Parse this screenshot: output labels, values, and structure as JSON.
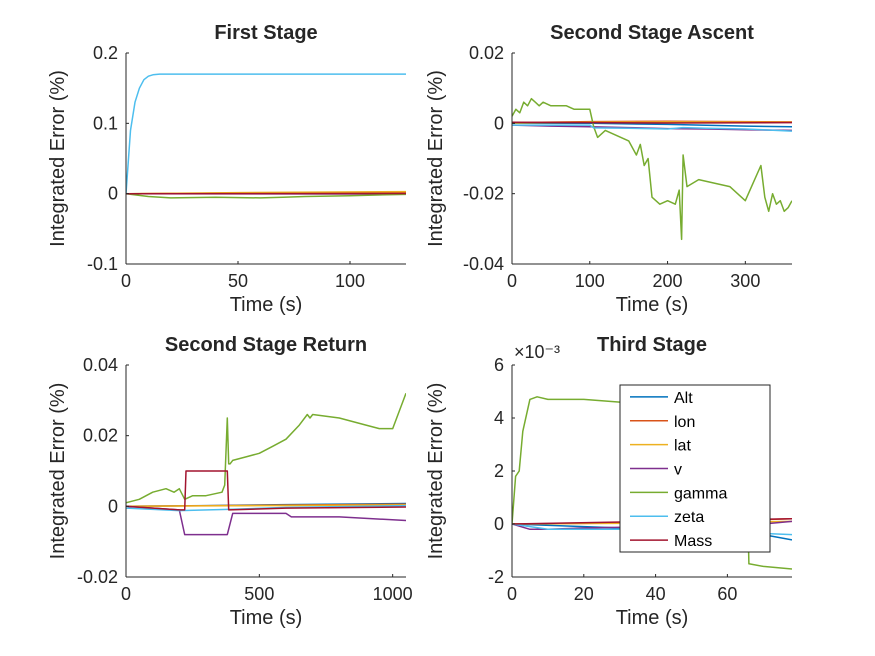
{
  "colors": {
    "Alt": "#0072BD",
    "lon": "#D95319",
    "lat": "#EDB120",
    "v": "#7E2F8E",
    "gamma": "#77AC30",
    "zeta": "#4DBEEE",
    "Mass": "#A2142F"
  },
  "legend": {
    "entries": [
      "Alt",
      "lon",
      "lat",
      "v",
      "gamma",
      "zeta",
      "Mass"
    ],
    "placement": "inside-top-right of Third Stage"
  },
  "chart_data": [
    {
      "type": "line",
      "title": "First Stage",
      "xlabel": "Time (s)",
      "ylabel": "Integrated Error (%)",
      "xlim": [
        0,
        125
      ],
      "ylim": [
        -0.1,
        0.2
      ],
      "xticks": [
        0,
        50,
        100
      ],
      "xtick_labels": [
        "0",
        "50",
        "100"
      ],
      "yticks": [
        -0.1,
        0,
        0.1,
        0.2
      ],
      "ytick_labels": [
        "-0.1",
        "0",
        "0.1",
        "0.2"
      ],
      "exponent_label": "",
      "series": [
        {
          "name": "Alt",
          "x": [
            0,
            125
          ],
          "y": [
            0,
            0.0005
          ]
        },
        {
          "name": "lon",
          "x": [
            0,
            50,
            125
          ],
          "y": [
            0,
            0.001,
            0.002
          ]
        },
        {
          "name": "lat",
          "x": [
            0,
            50,
            125
          ],
          "y": [
            0,
            0.0015,
            0.003
          ]
        },
        {
          "name": "v",
          "x": [
            0,
            125
          ],
          "y": [
            0,
            -0.0005
          ]
        },
        {
          "name": "gamma",
          "x": [
            0,
            5,
            10,
            20,
            40,
            60,
            70,
            80,
            100,
            110,
            125
          ],
          "y": [
            0,
            -0.002,
            -0.004,
            -0.006,
            -0.005,
            -0.006,
            -0.005,
            -0.004,
            -0.003,
            -0.002,
            -0.001
          ]
        },
        {
          "name": "zeta",
          "x": [
            0,
            2,
            4,
            6,
            8,
            10,
            12,
            15,
            20,
            30,
            50,
            125
          ],
          "y": [
            0,
            0.09,
            0.13,
            0.15,
            0.162,
            0.167,
            0.169,
            0.17,
            0.17,
            0.17,
            0.17,
            0.17
          ]
        },
        {
          "name": "Mass",
          "x": [
            0,
            125
          ],
          "y": [
            0,
            0.0002
          ]
        }
      ]
    },
    {
      "type": "line",
      "title": "Second Stage Ascent",
      "xlabel": "Time (s)",
      "ylabel": "Integrated Error (%)",
      "xlim": [
        0,
        360
      ],
      "ylim": [
        -0.04,
        0.02
      ],
      "xticks": [
        0,
        100,
        200,
        300
      ],
      "xtick_labels": [
        "0",
        "100",
        "200",
        "300"
      ],
      "yticks": [
        -0.04,
        -0.02,
        0,
        0.02
      ],
      "ytick_labels": [
        "-0.04",
        "-0.02",
        "0",
        "0.02"
      ],
      "exponent_label": "",
      "series": [
        {
          "name": "Alt",
          "x": [
            0,
            100,
            200,
            300,
            360
          ],
          "y": [
            0,
            0,
            -0.0003,
            -0.0008,
            -0.001
          ]
        },
        {
          "name": "lon",
          "x": [
            0,
            100,
            200,
            360
          ],
          "y": [
            0.0002,
            0.0005,
            0.0006,
            0.0004
          ]
        },
        {
          "name": "lat",
          "x": [
            0,
            100,
            200,
            360
          ],
          "y": [
            0.0001,
            0.0003,
            0.0004,
            0.0003
          ]
        },
        {
          "name": "v",
          "x": [
            0,
            50,
            100,
            150,
            200,
            250,
            300,
            360
          ],
          "y": [
            -0.0005,
            -0.0008,
            -0.001,
            -0.0012,
            -0.0015,
            -0.0016,
            -0.0018,
            -0.002
          ]
        },
        {
          "name": "gamma",
          "x": [
            0,
            5,
            10,
            15,
            20,
            25,
            30,
            35,
            40,
            50,
            60,
            70,
            80,
            90,
            100,
            105,
            110,
            120,
            130,
            140,
            150,
            160,
            165,
            170,
            175,
            180,
            190,
            200,
            210,
            215,
            218,
            220,
            225,
            240,
            260,
            280,
            290,
            300,
            310,
            320,
            325,
            330,
            335,
            340,
            345,
            350,
            355,
            360
          ],
          "y": [
            0.002,
            0.004,
            0.003,
            0.006,
            0.005,
            0.007,
            0.006,
            0.005,
            0.006,
            0.005,
            0.005,
            0.005,
            0.004,
            0.004,
            0.004,
            -0.001,
            -0.004,
            -0.002,
            -0.003,
            -0.004,
            -0.005,
            -0.009,
            -0.006,
            -0.012,
            -0.01,
            -0.021,
            -0.023,
            -0.022,
            -0.023,
            -0.019,
            -0.033,
            -0.009,
            -0.018,
            -0.016,
            -0.017,
            -0.018,
            -0.02,
            -0.022,
            -0.017,
            -0.012,
            -0.021,
            -0.025,
            -0.02,
            -0.023,
            -0.022,
            -0.025,
            -0.024,
            -0.022
          ]
        },
        {
          "name": "zeta",
          "x": [
            0,
            100,
            105,
            150,
            200,
            220,
            250,
            300,
            360
          ],
          "y": [
            -0.0005,
            -0.0005,
            -0.0013,
            -0.0014,
            -0.0016,
            -0.0012,
            -0.0014,
            -0.0016,
            -0.0022
          ]
        },
        {
          "name": "Mass",
          "x": [
            0,
            100,
            200,
            360
          ],
          "y": [
            0.0003,
            0.0002,
            0.0001,
            0.0002
          ]
        }
      ]
    },
    {
      "type": "line",
      "title": "Second Stage Return",
      "xlabel": "Time (s)",
      "ylabel": "Integrated Error (%)",
      "xlim": [
        0,
        1050
      ],
      "ylim": [
        -0.02,
        0.04
      ],
      "xticks": [
        0,
        500,
        1000
      ],
      "xtick_labels": [
        "0",
        "500",
        "1000"
      ],
      "yticks": [
        -0.02,
        0,
        0.02,
        0.04
      ],
      "ytick_labels": [
        "-0.02",
        "0",
        "0.02",
        "0.04"
      ],
      "exponent_label": "",
      "series": [
        {
          "name": "Alt",
          "x": [
            0,
            300,
            600,
            1050
          ],
          "y": [
            0,
            0.0002,
            0.0005,
            0.0008
          ]
        },
        {
          "name": "lon",
          "x": [
            0,
            500,
            1050
          ],
          "y": [
            0,
            0.0003,
            0.0006
          ]
        },
        {
          "name": "lat",
          "x": [
            0,
            500,
            1050
          ],
          "y": [
            0,
            0.0002,
            0.0004
          ]
        },
        {
          "name": "v",
          "x": [
            0,
            200,
            220,
            380,
            400,
            600,
            620,
            800,
            1050
          ],
          "y": [
            0,
            -0.001,
            -0.008,
            -0.008,
            -0.002,
            -0.002,
            -0.003,
            -0.003,
            -0.004
          ]
        },
        {
          "name": "gamma",
          "x": [
            0,
            50,
            100,
            150,
            180,
            200,
            220,
            250,
            300,
            360,
            370,
            380,
            385,
            390,
            400,
            450,
            500,
            550,
            600,
            650,
            680,
            690,
            700,
            800,
            900,
            950,
            1000,
            1020,
            1050
          ],
          "y": [
            0.001,
            0.002,
            0.004,
            0.005,
            0.004,
            0.005,
            0.002,
            0.003,
            0.003,
            0.004,
            0.006,
            0.025,
            0.012,
            0.012,
            0.013,
            0.014,
            0.015,
            0.017,
            0.019,
            0.023,
            0.026,
            0.025,
            0.026,
            0.025,
            0.023,
            0.022,
            0.022,
            0.026,
            0.032
          ]
        },
        {
          "name": "zeta",
          "x": [
            0,
            200,
            400,
            600,
            1050
          ],
          "y": [
            -0.0005,
            -0.0012,
            -0.0008,
            -0.0003,
            0.0002
          ]
        },
        {
          "name": "Mass",
          "x": [
            0,
            200,
            220,
            225,
            380,
            385,
            600,
            1050
          ],
          "y": [
            0,
            -0.001,
            -0.001,
            0.01,
            0.01,
            -0.001,
            -0.0005,
            -0.0002
          ]
        }
      ]
    },
    {
      "type": "line",
      "title": "Third Stage",
      "xlabel": "Time (s)",
      "ylabel": "Integrated Error (%)",
      "xlim": [
        0,
        78
      ],
      "ylim": [
        -0.002,
        0.006
      ],
      "xticks": [
        0,
        20,
        40,
        60
      ],
      "xtick_labels": [
        "0",
        "20",
        "40",
        "60"
      ],
      "yticks": [
        -0.002,
        0,
        0.002,
        0.004,
        0.006
      ],
      "ytick_labels": [
        "-2",
        "0",
        "2",
        "4",
        "6"
      ],
      "exponent_label": "×10⁻³",
      "series": [
        {
          "name": "Alt",
          "x": [
            0,
            20,
            40,
            60,
            70,
            78
          ],
          "y": [
            0,
            -0.0001,
            -0.0002,
            -0.0003,
            -0.0004,
            -0.0006
          ]
        },
        {
          "name": "lon",
          "x": [
            0,
            40,
            78
          ],
          "y": [
            0,
            5e-05,
            0.0002
          ]
        },
        {
          "name": "lat",
          "x": [
            0,
            40,
            78
          ],
          "y": [
            0,
            3e-05,
            0.0001
          ]
        },
        {
          "name": "v",
          "x": [
            0,
            5,
            10,
            20,
            40,
            60,
            70,
            78
          ],
          "y": [
            0,
            -0.0002,
            -0.0002,
            -0.00015,
            -0.0001,
            -0.0001,
            0,
            0.0001
          ]
        },
        {
          "name": "gamma",
          "x": [
            0,
            1,
            2,
            3,
            5,
            7,
            10,
            20,
            30,
            40,
            50,
            60,
            65,
            66,
            70,
            78
          ],
          "y": [
            0,
            0.0018,
            0.002,
            0.0035,
            0.0047,
            0.0048,
            0.0047,
            0.0047,
            0.0046,
            0.0046,
            0.0045,
            0.0045,
            0.0045,
            -0.0015,
            -0.0016,
            -0.0017
          ]
        },
        {
          "name": "zeta",
          "x": [
            0,
            10,
            30,
            50,
            60,
            78
          ],
          "y": [
            0,
            -0.0002,
            -0.0002,
            -0.0003,
            -0.0003,
            -0.0004
          ]
        },
        {
          "name": "Mass",
          "x": [
            0,
            40,
            78
          ],
          "y": [
            0,
            0.0001,
            0.0002
          ]
        }
      ]
    }
  ]
}
